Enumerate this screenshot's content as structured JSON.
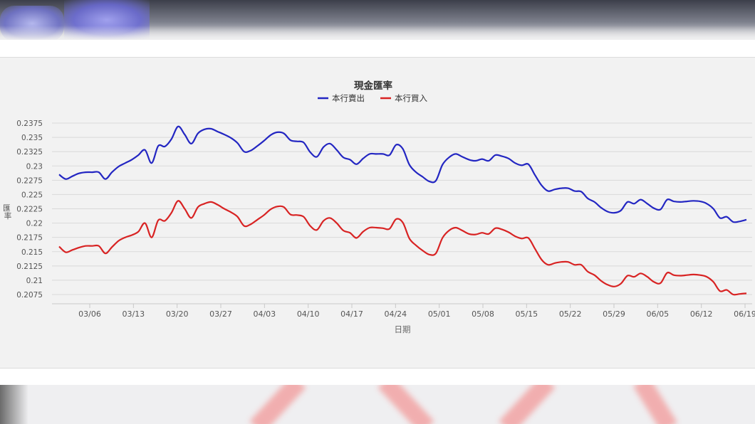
{
  "chart_data": {
    "type": "line",
    "title": "現金匯率",
    "xlabel": "日期",
    "ylabel": "匯率",
    "ylim": [
      0.206,
      0.2385
    ],
    "yticks": [
      "0.2075",
      "0.21",
      "0.2125",
      "0.215",
      "0.2175",
      "0.22",
      "0.2225",
      "0.225",
      "0.2275",
      "0.23",
      "0.2325",
      "0.235",
      "0.2375"
    ],
    "xticks": [
      "03/06",
      "03/13",
      "03/20",
      "03/27",
      "04/03",
      "04/10",
      "04/17",
      "04/24",
      "05/01",
      "05/08",
      "05/15",
      "05/22",
      "05/29",
      "06/05",
      "06/12",
      "06/19"
    ],
    "grid": true,
    "legend_position": "top",
    "series": [
      {
        "name": "本行賣出",
        "color": "#2326c2",
        "values": [
          0.2285,
          0.2277,
          0.2282,
          0.2287,
          0.2289,
          0.2289,
          0.2289,
          0.2277,
          0.2289,
          0.2299,
          0.2305,
          0.2311,
          0.2319,
          0.2328,
          0.2305,
          0.2335,
          0.2334,
          0.2347,
          0.2369,
          0.2355,
          0.2339,
          0.2357,
          0.2364,
          0.2365,
          0.236,
          0.2355,
          0.2349,
          0.234,
          0.2325,
          0.2327,
          0.2335,
          0.2344,
          0.2354,
          0.2359,
          0.2357,
          0.2345,
          0.2343,
          0.2341,
          0.2324,
          0.2316,
          0.2333,
          0.2339,
          0.2328,
          0.2315,
          0.2311,
          0.2303,
          0.2313,
          0.2321,
          0.2321,
          0.2321,
          0.2319,
          0.2337,
          0.233,
          0.2302,
          0.2289,
          0.2281,
          0.2273,
          0.2274,
          0.2302,
          0.2315,
          0.2321,
          0.2316,
          0.2311,
          0.2309,
          0.2312,
          0.2309,
          0.2319,
          0.2317,
          0.2313,
          0.2305,
          0.2301,
          0.2303,
          0.2284,
          0.2266,
          0.2256,
          0.2259,
          0.2261,
          0.2261,
          0.2256,
          0.2255,
          0.2243,
          0.2237,
          0.2227,
          0.222,
          0.2218,
          0.2222,
          0.2237,
          0.2234,
          0.2241,
          0.2234,
          0.2226,
          0.2224,
          0.2241,
          0.2238,
          0.2237,
          0.2238,
          0.2239,
          0.2238,
          0.2234,
          0.2225,
          0.2209,
          0.2211,
          0.2202,
          0.2203,
          0.2206
        ]
      },
      {
        "name": "本行買入",
        "color": "#d82323",
        "values": [
          0.2159,
          0.2149,
          0.2153,
          0.2157,
          0.216,
          0.216,
          0.216,
          0.2147,
          0.2158,
          0.2169,
          0.2175,
          0.2179,
          0.2185,
          0.22,
          0.2175,
          0.2205,
          0.2204,
          0.2218,
          0.2239,
          0.2225,
          0.2209,
          0.2228,
          0.2234,
          0.2237,
          0.2232,
          0.2225,
          0.2219,
          0.2211,
          0.2195,
          0.2198,
          0.2206,
          0.2214,
          0.2224,
          0.2229,
          0.2228,
          0.2215,
          0.2214,
          0.2211,
          0.2195,
          0.2188,
          0.2204,
          0.2209,
          0.22,
          0.2187,
          0.2183,
          0.2174,
          0.2185,
          0.2192,
          0.2192,
          0.2191,
          0.219,
          0.2207,
          0.2201,
          0.2173,
          0.2161,
          0.2152,
          0.2145,
          0.2147,
          0.2174,
          0.2187,
          0.2192,
          0.2187,
          0.2181,
          0.218,
          0.2183,
          0.2181,
          0.2191,
          0.2189,
          0.2184,
          0.2177,
          0.2173,
          0.2174,
          0.2155,
          0.2136,
          0.2127,
          0.213,
          0.2132,
          0.2132,
          0.2127,
          0.2127,
          0.2115,
          0.2109,
          0.2099,
          0.2092,
          0.2089,
          0.2094,
          0.2108,
          0.2106,
          0.2112,
          0.2106,
          0.2097,
          0.2095,
          0.2113,
          0.2109,
          0.2108,
          0.2109,
          0.211,
          0.2109,
          0.2106,
          0.2097,
          0.2081,
          0.2083,
          0.2075,
          0.2076,
          0.2077
        ]
      }
    ]
  }
}
